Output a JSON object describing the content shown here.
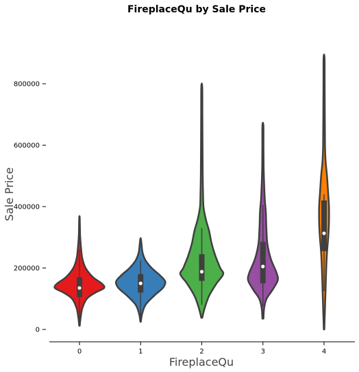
{
  "chart_data": {
    "type": "violin",
    "title": "FireplaceQu by Sale Price",
    "xlabel": "FireplaceQu",
    "ylabel": "Sale Price",
    "categories": [
      "0",
      "1",
      "2",
      "3",
      "4"
    ],
    "y_ticks": [
      0,
      200000,
      400000,
      600000,
      800000
    ],
    "y_tick_labels": [
      "0",
      "200000",
      "400000",
      "600000",
      "800000"
    ],
    "ylim": [
      -40000,
      930000
    ],
    "grid": false,
    "legend": "none",
    "series": [
      {
        "category": "0",
        "color": "#e41a1c",
        "min": 12000,
        "max": 365000,
        "q1": 105000,
        "median": 135000,
        "q3": 170000,
        "whisker_low": 35000,
        "whisker_high": 260000,
        "density": [
          [
            12000,
            0.01
          ],
          [
            40000,
            0.05
          ],
          [
            70000,
            0.12
          ],
          [
            100000,
            0.3
          ],
          [
            120000,
            0.65
          ],
          [
            135000,
            1.0
          ],
          [
            150000,
            0.9
          ],
          [
            170000,
            0.55
          ],
          [
            200000,
            0.25
          ],
          [
            230000,
            0.12
          ],
          [
            260000,
            0.07
          ],
          [
            300000,
            0.03
          ],
          [
            330000,
            0.02
          ],
          [
            365000,
            0.01
          ]
        ]
      },
      {
        "category": "1",
        "color": "#377eb8",
        "min": 25000,
        "max": 295000,
        "q1": 120000,
        "median": 150000,
        "q3": 180000,
        "whisker_low": 40000,
        "whisker_high": 225000,
        "density": [
          [
            25000,
            0.01
          ],
          [
            50000,
            0.06
          ],
          [
            80000,
            0.2
          ],
          [
            110000,
            0.55
          ],
          [
            135000,
            0.9
          ],
          [
            155000,
            1.0
          ],
          [
            175000,
            0.8
          ],
          [
            200000,
            0.45
          ],
          [
            225000,
            0.2
          ],
          [
            250000,
            0.08
          ],
          [
            275000,
            0.04
          ],
          [
            295000,
            0.01
          ]
        ]
      },
      {
        "category": "2",
        "color": "#4daf4a",
        "min": 38000,
        "max": 790000,
        "q1": 158000,
        "median": 188000,
        "q3": 245000,
        "whisker_low": 80000,
        "whisker_high": 330000,
        "density": [
          [
            38000,
            0.02
          ],
          [
            70000,
            0.12
          ],
          [
            110000,
            0.3
          ],
          [
            150000,
            0.6
          ],
          [
            180000,
            0.87
          ],
          [
            200000,
            0.75
          ],
          [
            240000,
            0.55
          ],
          [
            280000,
            0.4
          ],
          [
            320000,
            0.3
          ],
          [
            360000,
            0.16
          ],
          [
            400000,
            0.07
          ],
          [
            450000,
            0.05
          ],
          [
            500000,
            0.04
          ],
          [
            600000,
            0.03
          ],
          [
            700000,
            0.025
          ],
          [
            790000,
            0.02
          ]
        ]
      },
      {
        "category": "3",
        "color": "#984ea3",
        "min": 35000,
        "max": 665000,
        "q1": 150000,
        "median": 205000,
        "q3": 285000,
        "whisker_low": 75000,
        "whisker_high": 405000,
        "density": [
          [
            35000,
            0.02
          ],
          [
            70000,
            0.05
          ],
          [
            100000,
            0.15
          ],
          [
            130000,
            0.4
          ],
          [
            160000,
            0.6
          ],
          [
            185000,
            0.55
          ],
          [
            230000,
            0.32
          ],
          [
            280000,
            0.18
          ],
          [
            330000,
            0.14
          ],
          [
            380000,
            0.12
          ],
          [
            420000,
            0.08
          ],
          [
            470000,
            0.05
          ],
          [
            530000,
            0.03
          ],
          [
            600000,
            0.025
          ],
          [
            665000,
            0.02
          ]
        ]
      },
      {
        "category": "4",
        "color": "#ff7f00",
        "min": 0,
        "max": 885000,
        "q1": 255000,
        "median": 313000,
        "q3": 420000,
        "whisker_low": 125000,
        "whisker_high": 440000,
        "density": [
          [
            0,
            0.01
          ],
          [
            50000,
            0.03
          ],
          [
            100000,
            0.05
          ],
          [
            150000,
            0.07
          ],
          [
            200000,
            0.09
          ],
          [
            250000,
            0.12
          ],
          [
            300000,
            0.17
          ],
          [
            350000,
            0.2
          ],
          [
            400000,
            0.2
          ],
          [
            450000,
            0.16
          ],
          [
            500000,
            0.12
          ],
          [
            550000,
            0.06
          ],
          [
            600000,
            0.04
          ],
          [
            700000,
            0.03
          ],
          [
            800000,
            0.025
          ],
          [
            885000,
            0.02
          ]
        ]
      }
    ]
  }
}
